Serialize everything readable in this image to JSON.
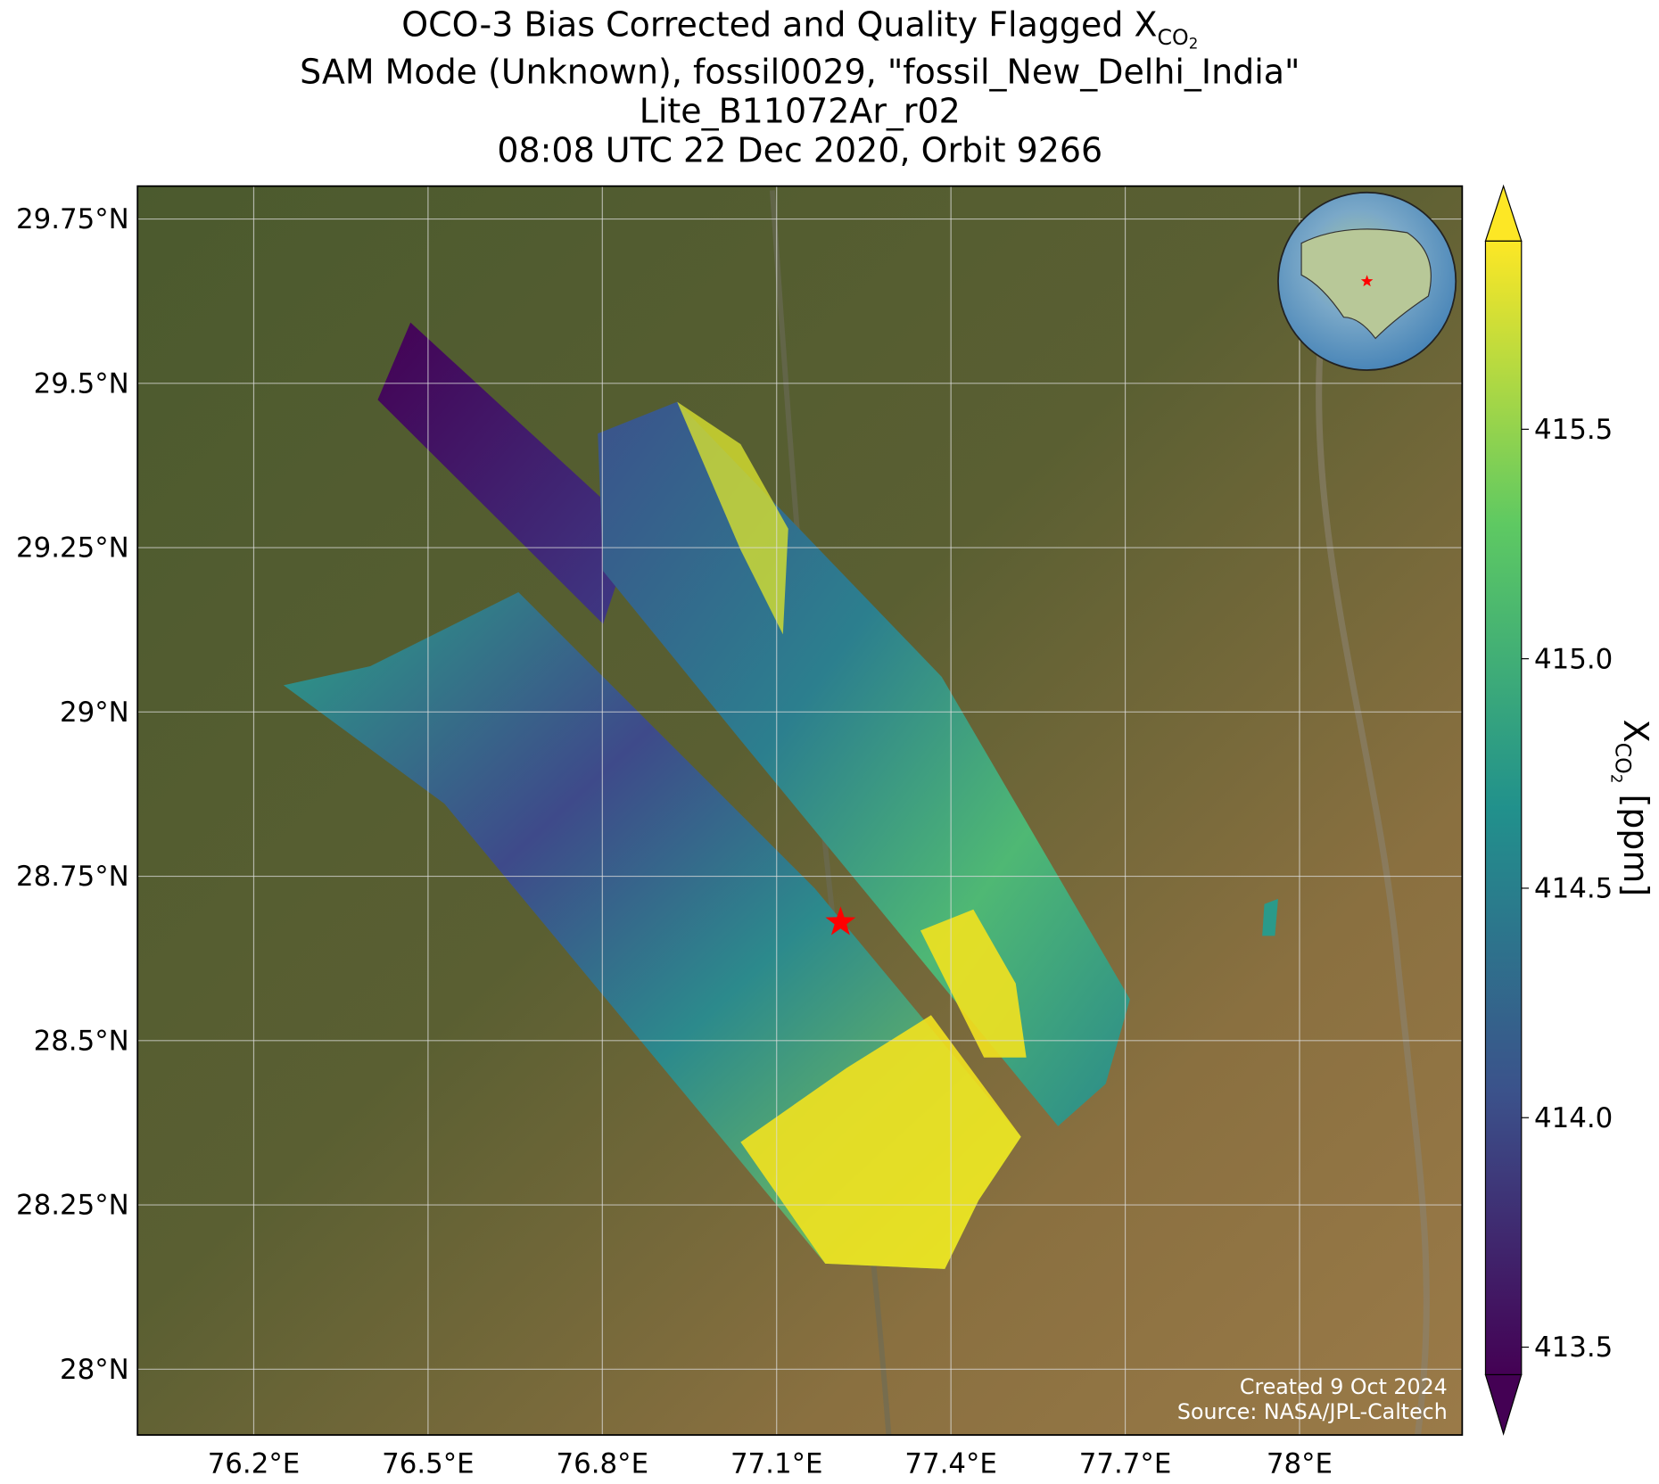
{
  "chart_data": {
    "type": "map",
    "title_first": {
      "text": "OCO-3 Bias Corrected and Quality Flagged X",
      "sub": "CO",
      "subsub": "2"
    },
    "title_lines": [
      "SAM Mode (Unknown), fossil0029, \"fossil_New_Delhi_India\"",
      "Lite_B11072Ar_r02",
      "08:08 UTC 22 Dec 2020, Orbit 9266"
    ],
    "xlim": [
      76.0,
      78.28
    ],
    "ylim": [
      27.9,
      29.8
    ],
    "xticks": [
      {
        "value": 76.2,
        "label": "76.2°E"
      },
      {
        "value": 76.5,
        "label": "76.5°E"
      },
      {
        "value": 76.8,
        "label": "76.8°E"
      },
      {
        "value": 77.1,
        "label": "77.1°E"
      },
      {
        "value": 77.4,
        "label": "77.4°E"
      },
      {
        "value": 77.7,
        "label": "77.7°E"
      },
      {
        "value": 78,
        "label": "78°E"
      }
    ],
    "yticks": [
      {
        "value": 28,
        "label": "28°N"
      },
      {
        "value": 28.25,
        "label": "28.25°N"
      },
      {
        "value": 28.5,
        "label": "28.5°N"
      },
      {
        "value": 28.75,
        "label": "28.75°N"
      },
      {
        "value": 29,
        "label": "29°N"
      },
      {
        "value": 29.25,
        "label": "29.25°N"
      },
      {
        "value": 29.5,
        "label": "29.5°N"
      },
      {
        "value": 29.75,
        "label": "29.75°N"
      }
    ],
    "grid": true,
    "target": {
      "lon": 77.21,
      "lat": 28.68,
      "color": "#ff0000"
    },
    "colorbar": {
      "clim": [
        413.44,
        415.91
      ],
      "ticks": [
        {
          "value": 413.5,
          "label": "413.5"
        },
        {
          "value": 414,
          "label": "414.0"
        },
        {
          "value": 414.5,
          "label": "414.5"
        },
        {
          "value": 415,
          "label": "415.0"
        },
        {
          "value": 415.5,
          "label": "415.5"
        }
      ],
      "label": {
        "text": "X",
        "sub": "CO",
        "subsub": "2",
        "unit": " [ppm]"
      }
    },
    "credits": [
      "Created 9 Oct 2024",
      "Source: NASA/JPL-Caltech"
    ]
  }
}
